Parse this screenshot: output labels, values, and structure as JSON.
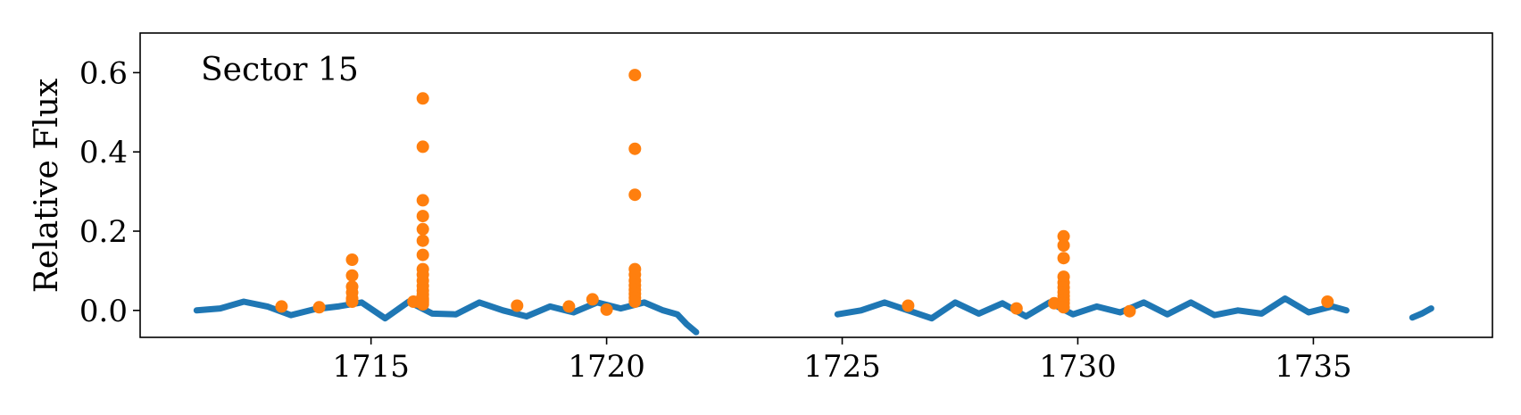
{
  "chart_data": {
    "type": "scatter",
    "title": "",
    "annotation": "Sector 15",
    "xlabel": "",
    "ylabel": "Relative Flux",
    "xlim": [
      1710.1,
      1738.8
    ],
    "ylim": [
      -0.068,
      0.7
    ],
    "xticks": [
      1715,
      1720,
      1725,
      1730,
      1735
    ],
    "yticks": [
      0.0,
      0.2,
      0.4,
      0.6
    ],
    "ytick_labels": [
      "0.0",
      "0.2",
      "0.4",
      "0.6"
    ],
    "grid": false,
    "legend": "none",
    "series": [
      {
        "color": "#1f77b4",
        "marker": "small-dot",
        "segments": [
          {
            "x": [
              1711.3,
              1711.8,
              1712.3,
              1712.8,
              1713.3,
              1713.8,
              1714.3,
              1714.8,
              1715.3,
              1715.8,
              1716.3,
              1716.8,
              1717.3,
              1717.8,
              1718.3,
              1718.8,
              1719.3,
              1719.8,
              1720.3,
              1720.8,
              1721.2,
              1721.5,
              1721.7,
              1721.9
            ],
            "y": [
              0.0,
              0.005,
              0.022,
              0.01,
              -0.012,
              0.003,
              0.01,
              0.02,
              -0.02,
              0.022,
              -0.008,
              -0.01,
              0.02,
              0.0,
              -0.015,
              0.01,
              -0.005,
              0.02,
              0.005,
              0.02,
              0.0,
              -0.01,
              -0.035,
              -0.055
            ]
          },
          {
            "x": [
              1724.9,
              1725.4,
              1725.9,
              1726.4,
              1726.9,
              1727.4,
              1727.9,
              1728.4,
              1728.9,
              1729.4,
              1729.9,
              1730.4,
              1730.9,
              1731.4,
              1731.9,
              1732.4,
              1732.9,
              1733.4,
              1733.9,
              1734.4,
              1734.9,
              1735.4,
              1735.7
            ],
            "y": [
              -0.01,
              0.0,
              0.02,
              0.0,
              -0.02,
              0.02,
              -0.008,
              0.018,
              -0.015,
              0.02,
              -0.01,
              0.01,
              -0.005,
              0.02,
              -0.01,
              0.02,
              -0.012,
              0.0,
              -0.008,
              0.03,
              -0.005,
              0.01,
              0.0
            ]
          },
          {
            "x": [
              1737.1,
              1737.3,
              1737.5
            ],
            "y": [
              -0.018,
              -0.008,
              0.005
            ]
          }
        ]
      },
      {
        "color": "#ff7f0e",
        "marker": "large-dot",
        "x": [
          1713.1,
          1713.9,
          1714.6,
          1714.6,
          1714.6,
          1714.6,
          1714.6,
          1714.6,
          1715.9,
          1716.0,
          1716.1,
          1716.1,
          1716.1,
          1716.1,
          1716.1,
          1716.1,
          1716.1,
          1716.1,
          1716.1,
          1716.1,
          1716.1,
          1716.1,
          1716.1,
          1716.1,
          1716.1,
          1716.1,
          1716.1,
          1718.1,
          1719.2,
          1719.7,
          1720.0,
          1720.6,
          1720.6,
          1720.6,
          1720.6,
          1720.6,
          1720.6,
          1720.6,
          1720.6,
          1720.6,
          1720.6,
          1720.6,
          1726.4,
          1728.7,
          1729.5,
          1729.7,
          1729.7,
          1729.7,
          1729.7,
          1729.7,
          1729.7,
          1729.7,
          1729.7,
          1729.7,
          1729.7,
          1729.7,
          1731.1,
          1735.3
        ],
        "y": [
          0.01,
          0.008,
          0.128,
          0.088,
          0.06,
          0.045,
          0.03,
          0.022,
          0.022,
          0.022,
          0.535,
          0.413,
          0.278,
          0.238,
          0.205,
          0.176,
          0.14,
          0.104,
          0.09,
          0.075,
          0.062,
          0.05,
          0.04,
          0.03,
          0.025,
          0.02,
          0.015,
          0.012,
          0.01,
          0.028,
          0.002,
          0.594,
          0.408,
          0.292,
          0.104,
          0.09,
          0.075,
          0.063,
          0.052,
          0.042,
          0.032,
          0.022,
          0.012,
          0.005,
          0.018,
          0.187,
          0.164,
          0.132,
          0.085,
          0.07,
          0.058,
          0.046,
          0.036,
          0.027,
          0.018,
          0.008,
          -0.002,
          0.022
        ]
      }
    ]
  }
}
